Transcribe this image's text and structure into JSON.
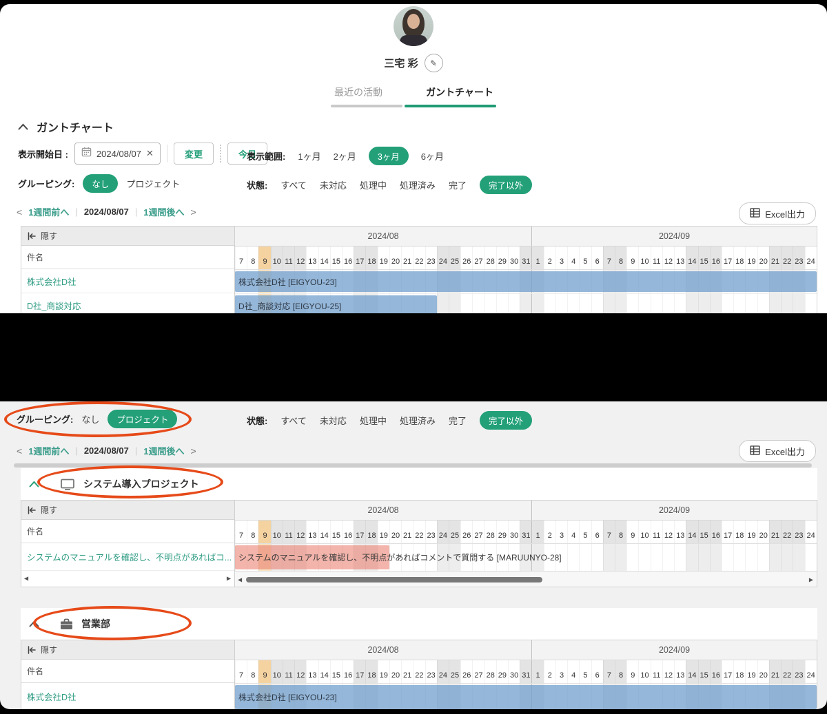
{
  "colors": {
    "accent_green": "#23a078",
    "tab_underline_green": "#1e9b74",
    "link_teal": "#3d9e8c",
    "bar_blue": "#8fb6d9",
    "bar_pink": "#f0a79e",
    "today_column_orange": "#f5d3a1",
    "annotation_red": "#e64a19"
  },
  "profile": {
    "name": "三宅 彩"
  },
  "tabs": {
    "recent": "最近の活動",
    "gantt": "ガントチャート"
  },
  "section": {
    "title": "ガントチャート"
  },
  "controls": {
    "start_date_label": "表示開始日 :",
    "start_date_value": "2024/08/07",
    "clear_icon": "✕",
    "change_button": "変更",
    "today_button": "今日",
    "range_label": "表示範囲:",
    "range_options": [
      "1ヶ月",
      "2ヶ月",
      "3ヶ月",
      "6ヶ月"
    ],
    "range_selected": "3ヶ月",
    "grouping_label": "グルーピング:",
    "grouping_options": [
      "なし",
      "プロジェクト"
    ],
    "grouping_selected_top": "なし",
    "grouping_selected_bottom": "プロジェクト",
    "status_label": "状態:",
    "status_options": [
      "すべて",
      "未対応",
      "処理中",
      "処理済み",
      "完了",
      "完了以外"
    ],
    "status_selected": "完了以外"
  },
  "toolbar": {
    "prev_week": "1週間前へ",
    "current_date": "2024/08/07",
    "next_week": "1週間後へ",
    "excel_button": "Excel出力"
  },
  "gantt_common": {
    "hide_label": "隠す",
    "subject_label": "件名"
  },
  "calendar": {
    "months": [
      {
        "label": "2024/08",
        "days": [
          7,
          8,
          9,
          10,
          11,
          12,
          13,
          14,
          15,
          16,
          17,
          18,
          19,
          20,
          21,
          22,
          23,
          24,
          25,
          26,
          27,
          28,
          29,
          30,
          31
        ],
        "off": [
          10,
          11,
          12,
          17,
          18,
          24,
          25,
          31
        ],
        "today": 9
      },
      {
        "label": "2024/09",
        "days": [
          1,
          2,
          3,
          4,
          5,
          6,
          7,
          8,
          9,
          10,
          11,
          12,
          13,
          14,
          15,
          16,
          17,
          18,
          19,
          20,
          21,
          22,
          23,
          24
        ],
        "off": [
          1,
          7,
          8,
          14,
          15,
          16,
          21,
          22,
          23
        ]
      }
    ]
  },
  "tables": [
    {
      "rows": [
        {
          "name": "株式会社D社",
          "bar_label": "株式会社D社 [EIGYOU-23]",
          "color": "blue",
          "start": 0,
          "span": 49
        },
        {
          "name": "D社_商談対応",
          "bar_label": "D社_商談対応 [EIGYOU-25]",
          "color": "blue",
          "start": 0,
          "span": 17
        }
      ],
      "scrollbar": false
    },
    {
      "rows": [
        {
          "name": "システムのマニュアルを確認し、不明点があればコ...",
          "bar_label": "システムのマニュアルを確認し、不明点があればコメントで質問する [MARUUNYO-28]",
          "color": "pink",
          "start": 0,
          "span": 13
        }
      ],
      "scrollbar": true
    },
    {
      "rows": [
        {
          "name": "株式会社D社",
          "bar_label": "株式会社D社 [EIGYOU-23]",
          "color": "blue",
          "start": 0,
          "span": 49
        }
      ],
      "scrollbar": false
    }
  ],
  "groups": [
    {
      "title": "システム導入プロジェクト",
      "icon": "monitor-icon"
    },
    {
      "title": "営業部",
      "icon": "briefcase-icon"
    }
  ]
}
